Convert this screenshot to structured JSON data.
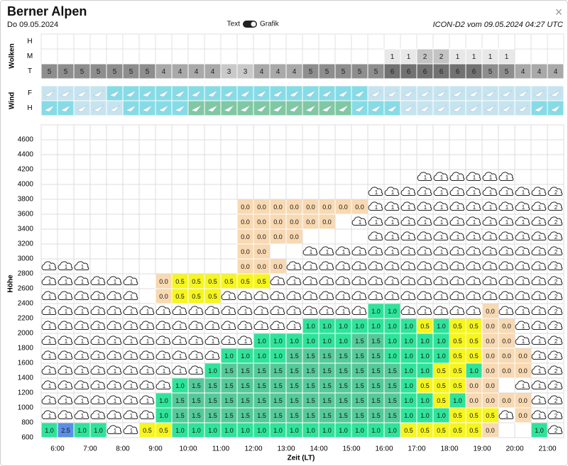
{
  "header": {
    "title": "Berner Alpen",
    "date": "Do 09.05.2024",
    "toggle_left": "Text",
    "toggle_right": "Grafik",
    "model": "ICON-D2 vom 09.05.2024 04:27 UTC",
    "close": "×"
  },
  "clouds": {
    "label": "Wolken",
    "rows": [
      {
        "name": "H"
      },
      {
        "name": "M",
        "values": [
          null,
          null,
          null,
          null,
          null,
          null,
          null,
          null,
          null,
          null,
          null,
          null,
          null,
          null,
          null,
          null,
          null,
          null,
          null,
          null,
          null,
          1,
          1,
          2,
          2,
          1,
          1,
          1,
          1,
          null,
          null,
          null
        ]
      },
      {
        "name": "T",
        "values": [
          5,
          5,
          5,
          5,
          5,
          5,
          5,
          4,
          4,
          4,
          4,
          3,
          3,
          4,
          4,
          4,
          5,
          5,
          5,
          5,
          5,
          6,
          6,
          6,
          6,
          6,
          6,
          5,
          5,
          4,
          4,
          4
        ]
      }
    ],
    "colors": {
      "1": "#e8e8e8",
      "2": "#c4c4c4",
      "3": "#c9c9c9",
      "4": "#a9a9a9",
      "5": "#8e8e8e",
      "6": "#727272"
    }
  },
  "wind": {
    "label": "Wind",
    "rows": [
      {
        "name": "F",
        "colors": [
          "#c6e4ef",
          "#c6e4ef",
          "#c6e4ef",
          "#c6e4ef",
          "#86dce6",
          "#86dce6",
          "#86dce6",
          "#86dce6",
          "#86dce6",
          "#86dce6",
          "#86dce6",
          "#86dce6",
          "#86dce6",
          "#86dce6",
          "#86dce6",
          "#86dce6",
          "#86dce6",
          "#86dce6",
          "#86dce6",
          "#86dce6",
          "#c6e4ef",
          "#c6e4ef",
          "#c6e4ef",
          "#c6e4ef",
          "#c6e4ef",
          "#c6e4ef",
          "#c6e4ef",
          "#c6e4ef",
          "#c6e4ef",
          "#c6e4ef",
          "#c6e4ef",
          "#c6e4ef"
        ]
      },
      {
        "name": "H",
        "colors": [
          "#86dce6",
          "#86dce6",
          "#c6e4ef",
          "#c6e4ef",
          "#c6e4ef",
          "#86dce6",
          "#86dce6",
          "#86dce6",
          "#86dce6",
          "#80c8a3",
          "#80c8a3",
          "#80c8a3",
          "#80c8a3",
          "#80c8a3",
          "#80c8a3",
          "#80c8a3",
          "#80c8a3",
          "#80c8a3",
          "#80c8a3",
          "#86dce6",
          "#86dce6",
          "#86dce6",
          "#c6e4ef",
          "#c6e4ef",
          "#c6e4ef",
          "#c6e4ef",
          "#c6e4ef",
          "#c6e4ef",
          "#c6e4ef",
          "#c6e4ef",
          "#86dce6",
          "#86dce6"
        ]
      }
    ]
  },
  "grid": {
    "y_label": "Höhe",
    "x_label": "Zeit (LT)",
    "y_ticks": [
      600,
      800,
      1000,
      1200,
      1400,
      1600,
      1800,
      2000,
      2200,
      2400,
      2600,
      2800,
      3000,
      3200,
      3400,
      3600,
      3800,
      4000,
      4200,
      4400,
      4600
    ],
    "x_ticks": [
      "6:00",
      "7:00",
      "8:00",
      "9:00",
      "10:00",
      "11:00",
      "12:00",
      "13:00",
      "14:00",
      "15:00",
      "16:00",
      "17:00",
      "18:00",
      "19:00",
      "20:00",
      "21:00"
    ],
    "colors": {
      "0.0": "#f8d9b2",
      "0.5": "#f6f51f",
      "1.0": "#2fe39a",
      "1.5": "#55c99a",
      "2.5": "#5b8fe6"
    },
    "rows": [
      [
        "1.0",
        "2.5",
        "1.0",
        "1.0",
        1,
        1,
        "0.5",
        "0.5",
        "1.0",
        "1.0",
        "1.0",
        "1.0",
        "1.0",
        "1.0",
        "1.0",
        "1.0",
        "1.0",
        "1.0",
        "1.0",
        "1.0",
        "1.0",
        "1.0",
        "0.5",
        "0.5",
        "0.5",
        "0.5",
        "0.5",
        "0.0",
        null,
        null,
        "1.0",
        2
      ],
      [
        1,
        1,
        1,
        1,
        1,
        1,
        1,
        "1.0",
        "1.5",
        "1.5",
        "1.5",
        "1.5",
        "1.5",
        "1.5",
        "1.5",
        "1.5",
        "1.5",
        "1.5",
        "1.5",
        "1.5",
        "1.5",
        "1.5",
        "1.0",
        "1.0",
        "1.0",
        "0.5",
        "0.5",
        "0.5",
        1,
        "0.0",
        1,
        2
      ],
      [
        1,
        1,
        1,
        1,
        1,
        1,
        1,
        "1.0",
        "1.5",
        "1.5",
        "1.5",
        "1.5",
        "1.5",
        "1.5",
        "1.5",
        "1.5",
        "1.5",
        "1.5",
        "1.5",
        "1.5",
        "1.5",
        "1.5",
        "1.0",
        "1.0",
        "0.5",
        "1.0",
        "0.0",
        "0.0",
        "0.0",
        "0.0",
        1,
        2
      ],
      [
        1,
        1,
        1,
        1,
        1,
        1,
        1,
        1,
        "1.0",
        "1.5",
        "1.5",
        "1.5",
        "1.5",
        "1.5",
        "1.5",
        "1.5",
        "1.5",
        "1.5",
        "1.5",
        "1.5",
        "1.5",
        "1.5",
        "1.0",
        "0.5",
        "0.5",
        "0.5",
        "0.0",
        "0.0",
        null,
        1,
        1,
        2
      ],
      [
        1,
        1,
        1,
        1,
        1,
        1,
        1,
        1,
        1,
        1,
        "1.0",
        "1.5",
        "1.5",
        "1.5",
        "1.5",
        "1.5",
        "1.5",
        "1.5",
        "1.5",
        "1.5",
        "1.5",
        "1.5",
        "1.0",
        "1.0",
        "0.5",
        "0.5",
        "1.0",
        "0.0",
        "0.0",
        "0.0",
        1,
        2
      ],
      [
        1,
        1,
        1,
        1,
        1,
        1,
        1,
        1,
        1,
        1,
        1,
        "1.0",
        "1.0",
        "1.0",
        "1.0",
        "1.5",
        "1.5",
        "1.5",
        "1.5",
        "1.5",
        "1.5",
        "1.0",
        "1.0",
        "1.0",
        "1.0",
        "0.5",
        "0.5",
        "0.0",
        "0.0",
        "0.0",
        1,
        2
      ],
      [
        1,
        1,
        1,
        1,
        1,
        1,
        1,
        1,
        1,
        1,
        1,
        1,
        1,
        "1.0",
        "1.0",
        "1.0",
        "1.0",
        "1.0",
        "1.0",
        "1.5",
        "1.5",
        "1.0",
        "1.0",
        "1.0",
        "1.0",
        "0.5",
        "0.5",
        "0.0",
        "0.0",
        1,
        1,
        2
      ],
      [
        1,
        1,
        1,
        1,
        1,
        1,
        1,
        1,
        1,
        1,
        1,
        1,
        1,
        1,
        1,
        1,
        "1.0",
        "1.0",
        "1.0",
        "1.0",
        "1.0",
        "1.0",
        "1.0",
        "0.5",
        "1.0",
        "0.5",
        "0.5",
        "0.0",
        "0.0",
        1,
        1,
        2
      ],
      [
        1,
        1,
        1,
        1,
        1,
        1,
        1,
        1,
        1,
        1,
        1,
        1,
        1,
        1,
        1,
        1,
        1,
        1,
        1,
        1,
        "1.0",
        "1.0",
        1,
        1,
        1,
        1,
        1,
        "0.0",
        1,
        1,
        1,
        2
      ],
      [
        1,
        1,
        1,
        1,
        1,
        1,
        null,
        "0.0",
        "0.5",
        "0.5",
        "0.5",
        1,
        1,
        1,
        1,
        1,
        1,
        1,
        1,
        1,
        1,
        1,
        1,
        1,
        1,
        1,
        1,
        1,
        1,
        1,
        1,
        2
      ],
      [
        1,
        1,
        1,
        1,
        1,
        1,
        null,
        "0.0",
        "0.5",
        "0.5",
        "0.5",
        "0.5",
        "0.5",
        "0.5",
        1,
        1,
        1,
        1,
        1,
        1,
        1,
        1,
        1,
        1,
        1,
        1,
        1,
        1,
        1,
        1,
        1,
        2
      ],
      [
        1,
        1,
        1,
        null,
        null,
        null,
        null,
        null,
        null,
        null,
        null,
        null,
        "0.0",
        "0.0",
        "0.0",
        1,
        1,
        1,
        1,
        1,
        1,
        1,
        1,
        1,
        1,
        1,
        1,
        1,
        1,
        1,
        1,
        2
      ],
      [
        null,
        null,
        null,
        null,
        null,
        null,
        null,
        null,
        null,
        null,
        null,
        null,
        "0.0",
        "0.0",
        null,
        null,
        1,
        1,
        1,
        1,
        1,
        1,
        1,
        1,
        1,
        1,
        1,
        1,
        1,
        1,
        1,
        2
      ],
      [
        null,
        null,
        null,
        null,
        null,
        null,
        null,
        null,
        null,
        null,
        null,
        null,
        "0.0",
        "0.0",
        "0.0",
        "0.0",
        null,
        null,
        null,
        null,
        1,
        1,
        1,
        1,
        1,
        1,
        1,
        1,
        1,
        1,
        1,
        2
      ],
      [
        null,
        null,
        null,
        null,
        null,
        null,
        null,
        null,
        null,
        null,
        null,
        null,
        "0.0",
        "0.0",
        "0.0",
        "0.0",
        "0.0",
        "0.0",
        null,
        1,
        1,
        1,
        1,
        1,
        1,
        1,
        1,
        1,
        1,
        1,
        1,
        2
      ],
      [
        null,
        null,
        null,
        null,
        null,
        null,
        null,
        null,
        null,
        null,
        null,
        null,
        "0.0",
        "0.0",
        "0.0",
        "0.0",
        "0.0",
        "0.0",
        "0.0",
        "0.0",
        1,
        1,
        1,
        1,
        1,
        1,
        1,
        1,
        1,
        1,
        1,
        2
      ],
      [
        null,
        null,
        null,
        null,
        null,
        null,
        null,
        null,
        null,
        null,
        null,
        null,
        null,
        null,
        null,
        null,
        null,
        null,
        null,
        null,
        1,
        1,
        1,
        1,
        1,
        1,
        1,
        1,
        1,
        1,
        1,
        2
      ],
      [
        null,
        null,
        null,
        null,
        null,
        null,
        null,
        null,
        null,
        null,
        null,
        null,
        null,
        null,
        null,
        null,
        null,
        null,
        null,
        null,
        null,
        null,
        null,
        1,
        1,
        1,
        1,
        1,
        1,
        null,
        null,
        null
      ],
      [
        null,
        null,
        null,
        null,
        null,
        null,
        null,
        null,
        null,
        null,
        null,
        null,
        null,
        null,
        null,
        null,
        null,
        null,
        null,
        null,
        null,
        null,
        null,
        null,
        null,
        null,
        null,
        null,
        null,
        null,
        null,
        null
      ],
      [
        null,
        null,
        null,
        null,
        null,
        null,
        null,
        null,
        null,
        null,
        null,
        null,
        null,
        null,
        null,
        null,
        null,
        null,
        null,
        null,
        null,
        null,
        null,
        null,
        null,
        null,
        null,
        null,
        null,
        null,
        null,
        null
      ],
      [
        null,
        null,
        null,
        null,
        null,
        null,
        null,
        null,
        null,
        null,
        null,
        null,
        null,
        null,
        null,
        null,
        null,
        null,
        null,
        null,
        null,
        null,
        null,
        null,
        null,
        null,
        null,
        null,
        null,
        null,
        null,
        null
      ]
    ]
  }
}
